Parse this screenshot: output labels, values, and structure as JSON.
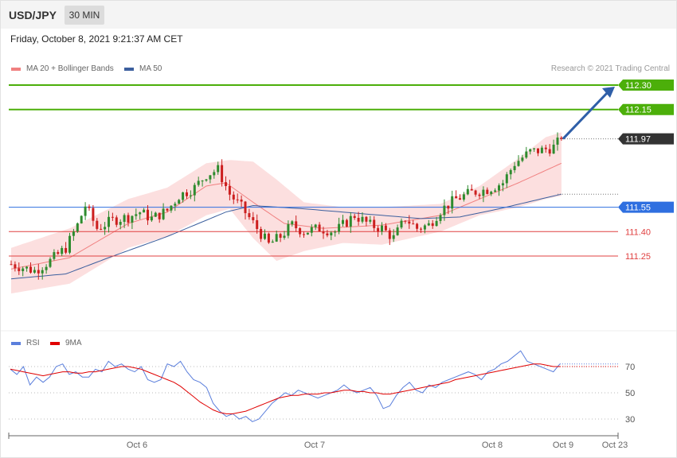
{
  "header": {
    "symbol": "USD/JPY",
    "interval": "30 MIN"
  },
  "datetime": "Friday, October 8, 2021 9:21:37 AM CET",
  "legend": {
    "main": [
      {
        "label": "MA 20 + Bollinger Bands",
        "color": "#f08080"
      },
      {
        "label": "MA 50",
        "color": "#3c5f9e"
      }
    ],
    "rsi": [
      {
        "label": "RSI",
        "color": "#5b7fdc"
      },
      {
        "label": "9MA",
        "color": "#e00000"
      }
    ]
  },
  "credit": "Research © 2021 Trading Central",
  "colors": {
    "up": "#2e8b2e",
    "down": "#cc1f1f",
    "target": "#4caf0a",
    "pivot": "#2f6fe0",
    "support": "#e04040",
    "arrow": "#2f5fa8"
  },
  "chart_data": [
    {
      "type": "candlestick",
      "ylim": [
        110.95,
        112.45
      ],
      "x_ticks": [
        "Oct 6",
        "Oct 7",
        "Oct 8",
        "Oct 9",
        "Oct 23"
      ],
      "levels": [
        {
          "value": 112.3,
          "label": "112.30",
          "kind": "target"
        },
        {
          "value": 112.15,
          "label": "112.15",
          "kind": "target"
        },
        {
          "value": 111.97,
          "label": "111.97",
          "kind": "current"
        },
        {
          "value": 111.55,
          "label": "111.55",
          "kind": "pivot"
        },
        {
          "value": 111.4,
          "label": "111.40",
          "kind": "support"
        },
        {
          "value": 111.25,
          "label": "111.25",
          "kind": "support"
        }
      ],
      "close_anchors": [
        [
          0,
          111.2
        ],
        [
          6,
          111.16
        ],
        [
          10,
          111.22
        ],
        [
          14,
          111.3
        ],
        [
          17,
          111.44
        ],
        [
          19,
          111.56
        ],
        [
          22,
          111.42
        ],
        [
          26,
          111.47
        ],
        [
          30,
          111.49
        ],
        [
          33,
          111.52
        ],
        [
          36,
          111.48
        ],
        [
          40,
          111.53
        ],
        [
          43,
          111.62
        ],
        [
          47,
          111.67
        ],
        [
          50,
          111.75
        ],
        [
          53,
          111.78
        ],
        [
          56,
          111.63
        ],
        [
          59,
          111.55
        ],
        [
          63,
          111.42
        ],
        [
          66,
          111.32
        ],
        [
          69,
          111.37
        ],
        [
          72,
          111.44
        ],
        [
          75,
          111.4
        ],
        [
          79,
          111.42
        ],
        [
          83,
          111.4
        ],
        [
          88,
          111.5
        ],
        [
          92,
          111.44
        ],
        [
          95,
          111.42
        ],
        [
          98,
          111.36
        ],
        [
          101,
          111.48
        ],
        [
          104,
          111.42
        ],
        [
          107,
          111.44
        ],
        [
          110,
          111.53
        ],
        [
          114,
          111.6
        ],
        [
          118,
          111.64
        ],
        [
          122,
          111.66
        ],
        [
          126,
          111.7
        ],
        [
          129,
          111.82
        ],
        [
          133,
          111.89
        ],
        [
          136,
          111.9
        ],
        [
          139,
          111.92
        ],
        [
          141,
          111.97
        ]
      ],
      "bollinger_ma20": [
        [
          0,
          111.17
        ],
        [
          15,
          111.24
        ],
        [
          30,
          111.45
        ],
        [
          40,
          111.52
        ],
        [
          50,
          111.68
        ],
        [
          55,
          111.7
        ],
        [
          62,
          111.58
        ],
        [
          70,
          111.45
        ],
        [
          80,
          111.42
        ],
        [
          95,
          111.44
        ],
        [
          110,
          111.5
        ],
        [
          120,
          111.6
        ],
        [
          130,
          111.7
        ],
        [
          141,
          111.82
        ]
      ],
      "bollinger_upper": [
        [
          0,
          111.3
        ],
        [
          15,
          111.42
        ],
        [
          30,
          111.6
        ],
        [
          40,
          111.67
        ],
        [
          50,
          111.82
        ],
        [
          56,
          111.84
        ],
        [
          62,
          111.83
        ],
        [
          68,
          111.72
        ],
        [
          75,
          111.58
        ],
        [
          85,
          111.55
        ],
        [
          95,
          111.55
        ],
        [
          110,
          111.57
        ],
        [
          120,
          111.68
        ],
        [
          130,
          111.85
        ],
        [
          137,
          111.98
        ],
        [
          141,
          112.01
        ]
      ],
      "bollinger_lower": [
        [
          0,
          111.02
        ],
        [
          15,
          111.08
        ],
        [
          30,
          111.3
        ],
        [
          40,
          111.37
        ],
        [
          50,
          111.5
        ],
        [
          56,
          111.54
        ],
        [
          62,
          111.36
        ],
        [
          68,
          111.22
        ],
        [
          75,
          111.28
        ],
        [
          85,
          111.33
        ],
        [
          95,
          111.32
        ],
        [
          110,
          111.4
        ],
        [
          120,
          111.5
        ],
        [
          130,
          111.55
        ],
        [
          137,
          111.6
        ],
        [
          141,
          111.62
        ]
      ],
      "ma50": [
        [
          0,
          111.11
        ],
        [
          14,
          111.14
        ],
        [
          25,
          111.24
        ],
        [
          40,
          111.37
        ],
        [
          55,
          111.52
        ],
        [
          62,
          111.56
        ],
        [
          75,
          111.54
        ],
        [
          90,
          111.51
        ],
        [
          105,
          111.48
        ],
        [
          115,
          111.49
        ],
        [
          125,
          111.54
        ],
        [
          141,
          111.63
        ]
      ]
    },
    {
      "type": "line",
      "ylim": [
        20,
        80
      ],
      "y_ticks": [
        70,
        50,
        30
      ],
      "series": [
        {
          "name": "RSI",
          "values": [
            68,
            64,
            70,
            56,
            62,
            58,
            62,
            70,
            72,
            64,
            66,
            62,
            62,
            68,
            66,
            74,
            70,
            72,
            68,
            66,
            70,
            60,
            58,
            60,
            72,
            70,
            74,
            66,
            60,
            58,
            54,
            42,
            36,
            32,
            34,
            30,
            32,
            28,
            30,
            36,
            42,
            46,
            50,
            48,
            52,
            50,
            48,
            46,
            48,
            50,
            52,
            56,
            52,
            50,
            52,
            54,
            48,
            38,
            40,
            48,
            54,
            58,
            52,
            50,
            56,
            54,
            58,
            60,
            62,
            64,
            66,
            64,
            60,
            66,
            68,
            72,
            74,
            78,
            82,
            74,
            72,
            70,
            68,
            66,
            72
          ]
        },
        {
          "name": "9MA",
          "values": [
            68,
            67,
            66,
            65,
            64,
            63,
            64,
            65,
            66,
            66,
            65,
            65,
            66,
            66,
            67,
            68,
            69,
            70,
            70,
            69,
            68,
            66,
            64,
            62,
            60,
            58,
            55,
            51,
            47,
            43,
            40,
            37,
            35,
            34,
            34,
            35,
            36,
            38,
            40,
            42,
            44,
            46,
            47,
            48,
            48,
            49,
            49,
            49,
            50,
            50,
            51,
            52,
            52,
            51,
            51,
            50,
            50,
            49,
            49,
            50,
            51,
            52,
            53,
            54,
            55,
            56,
            57,
            58,
            60,
            61,
            62,
            63,
            64,
            65,
            66,
            67,
            68,
            69,
            70,
            71,
            72,
            72,
            71,
            70,
            70
          ]
        }
      ]
    }
  ]
}
